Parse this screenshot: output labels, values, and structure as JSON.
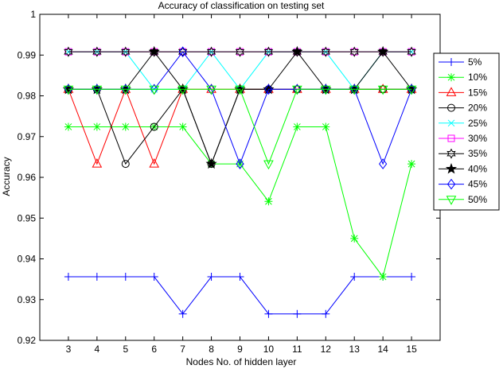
{
  "chart_data": {
    "type": "line",
    "title": "Accuracy of classification on testing set",
    "xlabel": "Nodes No. of hidden layer",
    "ylabel": "Accuracy",
    "x": [
      3,
      4,
      5,
      6,
      7,
      8,
      9,
      10,
      11,
      12,
      13,
      14,
      15
    ],
    "xlim": [
      2,
      16
    ],
    "ylim": [
      0.92,
      1.0
    ],
    "yticks": [
      0.92,
      0.93,
      0.94,
      0.95,
      0.96,
      0.97,
      0.98,
      0.99,
      1.0
    ],
    "ytick_labels": [
      "0.92",
      "0.93",
      "0.94",
      "0.95",
      "0.96",
      "0.97",
      "0.98",
      "0.99",
      "1"
    ],
    "grid": false,
    "legend_position": "right",
    "series": [
      {
        "name": "5%",
        "color": "#0000ff",
        "marker": "plus",
        "values": [
          0.9356,
          0.9356,
          0.9356,
          0.9356,
          0.9265,
          0.9356,
          0.9356,
          0.9265,
          0.9265,
          0.9265,
          0.9356,
          0.9356,
          0.9356
        ]
      },
      {
        "name": "10%",
        "color": "#00ff00",
        "marker": "asterisk",
        "values": [
          0.9724,
          0.9724,
          0.9724,
          0.9724,
          0.9724,
          0.9633,
          0.9633,
          0.9541,
          0.9724,
          0.9724,
          0.945,
          0.9356,
          0.9633
        ]
      },
      {
        "name": "15%",
        "color": "#ff0000",
        "marker": "triangle",
        "values": [
          0.9816,
          0.9633,
          0.9816,
          0.9633,
          0.9816,
          0.9816,
          0.9816,
          0.9816,
          0.9816,
          0.9816,
          0.9816,
          0.9816,
          0.9816
        ]
      },
      {
        "name": "20%",
        "color": "#000000",
        "marker": "circle",
        "values": [
          0.9816,
          0.9816,
          0.9633,
          0.9724,
          0.9816,
          0.9633,
          0.9816,
          0.9816,
          0.9816,
          0.9816,
          0.9816,
          0.9816,
          0.9816
        ]
      },
      {
        "name": "25%",
        "color": "#00ffff",
        "marker": "x",
        "values": [
          0.9908,
          0.9908,
          0.9908,
          0.9816,
          0.9816,
          0.9908,
          0.9816,
          0.9908,
          0.9908,
          0.9908,
          0.9816,
          0.9908,
          0.9908
        ]
      },
      {
        "name": "30%",
        "color": "#ff00ff",
        "marker": "square",
        "values": [
          0.9908,
          0.9908,
          0.9908,
          0.9908,
          0.9908,
          0.9908,
          0.9908,
          0.9908,
          0.9908,
          0.9908,
          0.9908,
          0.9908,
          0.9908
        ]
      },
      {
        "name": "35%",
        "color": "#000000",
        "marker": "hexagram",
        "values": [
          0.9908,
          0.9908,
          0.9908,
          0.9908,
          0.9908,
          0.9908,
          0.9908,
          0.9908,
          0.9908,
          0.9908,
          0.9908,
          0.9908,
          0.9908
        ]
      },
      {
        "name": "40%",
        "color": "#000000",
        "marker": "pentagram",
        "values": [
          0.9816,
          0.9816,
          0.9816,
          0.9908,
          0.9816,
          0.9633,
          0.9816,
          0.9816,
          0.9908,
          0.9816,
          0.9816,
          0.9908,
          0.9816
        ]
      },
      {
        "name": "45%",
        "color": "#0000ff",
        "marker": "diamond",
        "values": [
          0.9816,
          0.9816,
          0.9816,
          0.9816,
          0.9908,
          0.9816,
          0.9633,
          0.9816,
          0.9816,
          0.9816,
          0.9816,
          0.9633,
          0.9816
        ]
      },
      {
        "name": "50%",
        "color": "#00ff00",
        "marker": "triangle-down",
        "values": [
          0.9816,
          0.9816,
          0.9816,
          0.9816,
          0.9816,
          0.9816,
          0.9816,
          0.9633,
          0.9816,
          0.9816,
          0.9816,
          0.9816,
          0.9816
        ]
      }
    ]
  }
}
